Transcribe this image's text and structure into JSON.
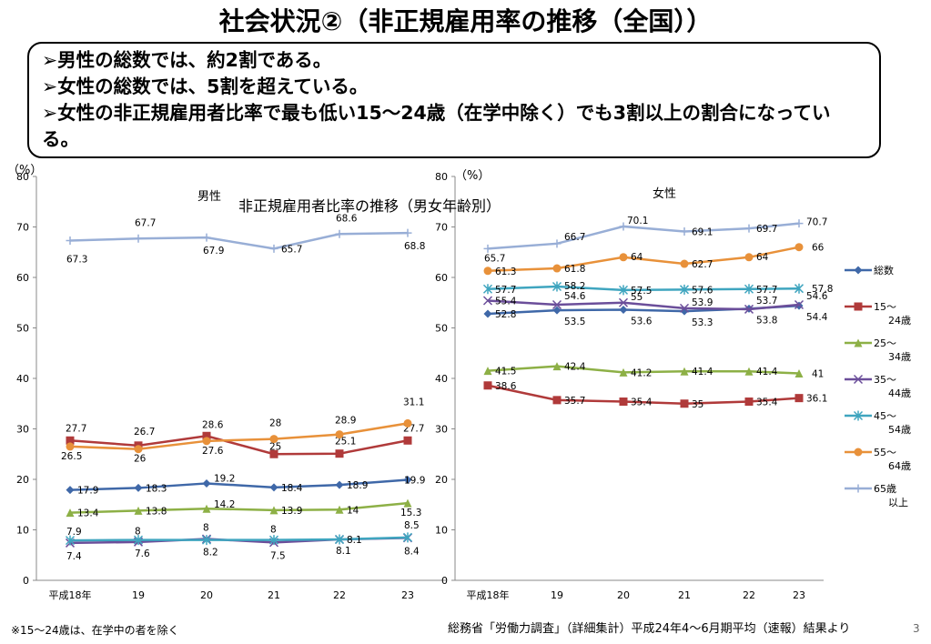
{
  "slide": {
    "title": "社会状況②（非正規雇用率の推移（全国））",
    "bullets": [
      "➢男性の総数では、約2割である。",
      "➢女性の総数では、5割を超えている。",
      "➢女性の非正規雇用者比率で最も低い15～24歳（在学中除く）でも3割以上の割合になっている。"
    ],
    "chart_title": "非正規雇用者比率の推移（男女年齢別）",
    "footnote": "※15～24歳は、在学中の者を除く",
    "source": "総務省「労働力調査」（詳細集計）平成24年4～6月期平均（速報）結果より",
    "page_number": "3"
  },
  "legend": [
    {
      "l1": "総数",
      "l2": ""
    },
    {
      "l1": "15～",
      "l2": "24歳"
    },
    {
      "l1": "25～",
      "l2": "34歳"
    },
    {
      "l1": "35～",
      "l2": "44歳"
    },
    {
      "l1": "45～",
      "l2": "54歳"
    },
    {
      "l1": "55～",
      "l2": "64歳"
    },
    {
      "l1": "65歳",
      "l2": "以上"
    }
  ],
  "chart_data": [
    {
      "type": "line",
      "title": "男性",
      "ylabel": "（%）",
      "ylim": [
        0,
        80
      ],
      "yticks": [
        0,
        10,
        20,
        30,
        40,
        50,
        60,
        70,
        80
      ],
      "categories": [
        "平成18年",
        "19",
        "20",
        "21",
        "22",
        "23"
      ],
      "series": [
        {
          "name": "総数",
          "color": "#3F68A8",
          "marker": "diamond",
          "values": [
            17.9,
            18.3,
            19.2,
            18.4,
            18.9,
            19.9
          ]
        },
        {
          "name": "15～24歳",
          "color": "#B03A3A",
          "marker": "square",
          "values": [
            27.7,
            26.7,
            28.6,
            25,
            25.1,
            27.7
          ]
        },
        {
          "name": "25～34歳",
          "color": "#8DB046",
          "marker": "triangle",
          "values": [
            13.4,
            13.8,
            14.2,
            13.9,
            14,
            15.3
          ]
        },
        {
          "name": "35～44歳",
          "color": "#6B4E9A",
          "marker": "x",
          "values": [
            7.4,
            7.6,
            8.2,
            7.5,
            8.1,
            8.4
          ]
        },
        {
          "name": "45～54歳",
          "color": "#3FA5BF",
          "marker": "star",
          "values": [
            7.9,
            8,
            8,
            8,
            8.1,
            8.5
          ]
        },
        {
          "name": "55～64歳",
          "color": "#E8913A",
          "marker": "circle",
          "values": [
            26.5,
            26,
            27.6,
            28,
            28.9,
            31.1
          ]
        },
        {
          "name": "65歳以上",
          "color": "#98AED6",
          "marker": "plus",
          "values": [
            67.3,
            67.7,
            67.9,
            65.7,
            68.6,
            68.8
          ]
        }
      ]
    },
    {
      "type": "line",
      "title": "女性",
      "ylabel": "（%）",
      "ylim": [
        0,
        80
      ],
      "yticks": [
        0,
        10,
        20,
        30,
        40,
        50,
        60,
        70,
        80
      ],
      "categories": [
        "平成18年",
        "19",
        "20",
        "21",
        "22",
        "23"
      ],
      "series": [
        {
          "name": "総数",
          "color": "#3F68A8",
          "marker": "diamond",
          "values": [
            52.8,
            53.5,
            53.6,
            53.3,
            53.8,
            54.4
          ]
        },
        {
          "name": "15～24歳",
          "color": "#B03A3A",
          "marker": "square",
          "values": [
            38.6,
            35.7,
            35.4,
            35,
            35.4,
            36.1
          ]
        },
        {
          "name": "25～34歳",
          "color": "#8DB046",
          "marker": "triangle",
          "values": [
            41.5,
            42.4,
            41.2,
            41.4,
            41.4,
            41
          ]
        },
        {
          "name": "35～44歳",
          "color": "#6B4E9A",
          "marker": "x",
          "values": [
            55.4,
            54.6,
            55,
            53.9,
            53.7,
            54.6
          ]
        },
        {
          "name": "45～54歳",
          "color": "#3FA5BF",
          "marker": "star",
          "values": [
            57.7,
            58.2,
            57.5,
            57.6,
            57.7,
            57.8
          ]
        },
        {
          "name": "55～64歳",
          "color": "#E8913A",
          "marker": "circle",
          "values": [
            61.3,
            61.8,
            64,
            62.7,
            64,
            66
          ]
        },
        {
          "name": "65歳以上",
          "color": "#98AED6",
          "marker": "plus",
          "values": [
            65.7,
            66.7,
            70.1,
            69.1,
            69.7,
            70.7
          ]
        }
      ]
    }
  ]
}
